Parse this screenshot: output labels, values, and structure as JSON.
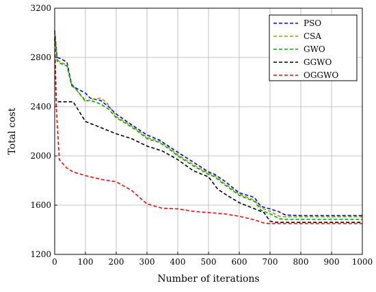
{
  "chart_data": {
    "type": "line",
    "title": "",
    "xlabel": "Number of iterations",
    "ylabel": "Total cost",
    "xlim": [
      0,
      1000
    ],
    "ylim": [
      1200,
      3200
    ],
    "x_ticks": [
      0,
      100,
      200,
      300,
      400,
      500,
      600,
      700,
      800,
      900,
      1000
    ],
    "y_ticks": [
      1200,
      1600,
      2000,
      2400,
      2800,
      3200
    ],
    "grid": true,
    "legend_position": "top-right",
    "series": [
      {
        "name": "PSO",
        "color": "#0000ff",
        "dash": "dashed",
        "points": [
          [
            0,
            3020
          ],
          [
            8,
            2800
          ],
          [
            20,
            2790
          ],
          [
            40,
            2760
          ],
          [
            55,
            2580
          ],
          [
            70,
            2550
          ],
          [
            100,
            2510
          ],
          [
            115,
            2470
          ],
          [
            130,
            2460
          ],
          [
            150,
            2450
          ],
          [
            175,
            2400
          ],
          [
            200,
            2340
          ],
          [
            240,
            2270
          ],
          [
            270,
            2220
          ],
          [
            300,
            2170
          ],
          [
            340,
            2130
          ],
          [
            370,
            2080
          ],
          [
            400,
            2030
          ],
          [
            450,
            1950
          ],
          [
            500,
            1870
          ],
          [
            520,
            1850
          ],
          [
            550,
            1800
          ],
          [
            600,
            1700
          ],
          [
            640,
            1670
          ],
          [
            650,
            1660
          ],
          [
            670,
            1590
          ],
          [
            700,
            1570
          ],
          [
            730,
            1545
          ],
          [
            750,
            1520
          ],
          [
            800,
            1515
          ],
          [
            900,
            1515
          ],
          [
            1000,
            1515
          ]
        ]
      },
      {
        "name": "CSA",
        "color": "#999900",
        "dash": "dashed",
        "points": [
          [
            0,
            3000
          ],
          [
            8,
            2780
          ],
          [
            20,
            2760
          ],
          [
            40,
            2740
          ],
          [
            55,
            2580
          ],
          [
            70,
            2540
          ],
          [
            100,
            2440
          ],
          [
            120,
            2460
          ],
          [
            150,
            2470
          ],
          [
            170,
            2430
          ],
          [
            200,
            2320
          ],
          [
            240,
            2260
          ],
          [
            270,
            2210
          ],
          [
            300,
            2150
          ],
          [
            340,
            2120
          ],
          [
            370,
            2070
          ],
          [
            400,
            2010
          ],
          [
            450,
            1930
          ],
          [
            500,
            1860
          ],
          [
            520,
            1840
          ],
          [
            550,
            1780
          ],
          [
            600,
            1690
          ],
          [
            640,
            1650
          ],
          [
            650,
            1640
          ],
          [
            670,
            1580
          ],
          [
            700,
            1550
          ],
          [
            730,
            1510
          ],
          [
            750,
            1505
          ],
          [
            800,
            1505
          ],
          [
            900,
            1505
          ],
          [
            1000,
            1505
          ]
        ]
      },
      {
        "name": "GWO",
        "color": "#00aa00",
        "dash": "dashed",
        "points": [
          [
            0,
            3010
          ],
          [
            8,
            2770
          ],
          [
            20,
            2750
          ],
          [
            40,
            2730
          ],
          [
            55,
            2570
          ],
          [
            70,
            2540
          ],
          [
            100,
            2450
          ],
          [
            115,
            2450
          ],
          [
            130,
            2440
          ],
          [
            150,
            2420
          ],
          [
            175,
            2380
          ],
          [
            200,
            2310
          ],
          [
            240,
            2250
          ],
          [
            270,
            2200
          ],
          [
            300,
            2140
          ],
          [
            340,
            2110
          ],
          [
            370,
            2060
          ],
          [
            400,
            2000
          ],
          [
            450,
            1920
          ],
          [
            500,
            1850
          ],
          [
            520,
            1830
          ],
          [
            550,
            1770
          ],
          [
            600,
            1680
          ],
          [
            640,
            1640
          ],
          [
            650,
            1630
          ],
          [
            670,
            1560
          ],
          [
            700,
            1530
          ],
          [
            730,
            1490
          ],
          [
            750,
            1485
          ],
          [
            800,
            1485
          ],
          [
            900,
            1485
          ],
          [
            1000,
            1485
          ]
        ]
      },
      {
        "name": "GGWO",
        "color": "#000000",
        "dash": "dashed",
        "points": [
          [
            0,
            2960
          ],
          [
            5,
            2440
          ],
          [
            30,
            2440
          ],
          [
            60,
            2440
          ],
          [
            100,
            2280
          ],
          [
            150,
            2230
          ],
          [
            200,
            2180
          ],
          [
            250,
            2140
          ],
          [
            300,
            2080
          ],
          [
            350,
            2040
          ],
          [
            400,
            1970
          ],
          [
            450,
            1880
          ],
          [
            500,
            1830
          ],
          [
            530,
            1730
          ],
          [
            560,
            1680
          ],
          [
            600,
            1620
          ],
          [
            650,
            1570
          ],
          [
            680,
            1540
          ],
          [
            700,
            1470
          ],
          [
            720,
            1460
          ],
          [
            750,
            1460
          ],
          [
            800,
            1460
          ],
          [
            900,
            1460
          ],
          [
            1000,
            1460
          ]
        ]
      },
      {
        "name": "OGGWO",
        "color": "#ff0000",
        "dash": "dashed",
        "points": [
          [
            0,
            2960
          ],
          [
            5,
            2400
          ],
          [
            15,
            1970
          ],
          [
            40,
            1900
          ],
          [
            60,
            1870
          ],
          [
            100,
            1840
          ],
          [
            150,
            1810
          ],
          [
            200,
            1790
          ],
          [
            250,
            1720
          ],
          [
            300,
            1610
          ],
          [
            350,
            1575
          ],
          [
            400,
            1570
          ],
          [
            450,
            1550
          ],
          [
            500,
            1540
          ],
          [
            550,
            1530
          ],
          [
            600,
            1510
          ],
          [
            650,
            1480
          ],
          [
            680,
            1455
          ],
          [
            700,
            1450
          ],
          [
            800,
            1450
          ],
          [
            900,
            1450
          ],
          [
            1000,
            1450
          ]
        ]
      }
    ]
  }
}
